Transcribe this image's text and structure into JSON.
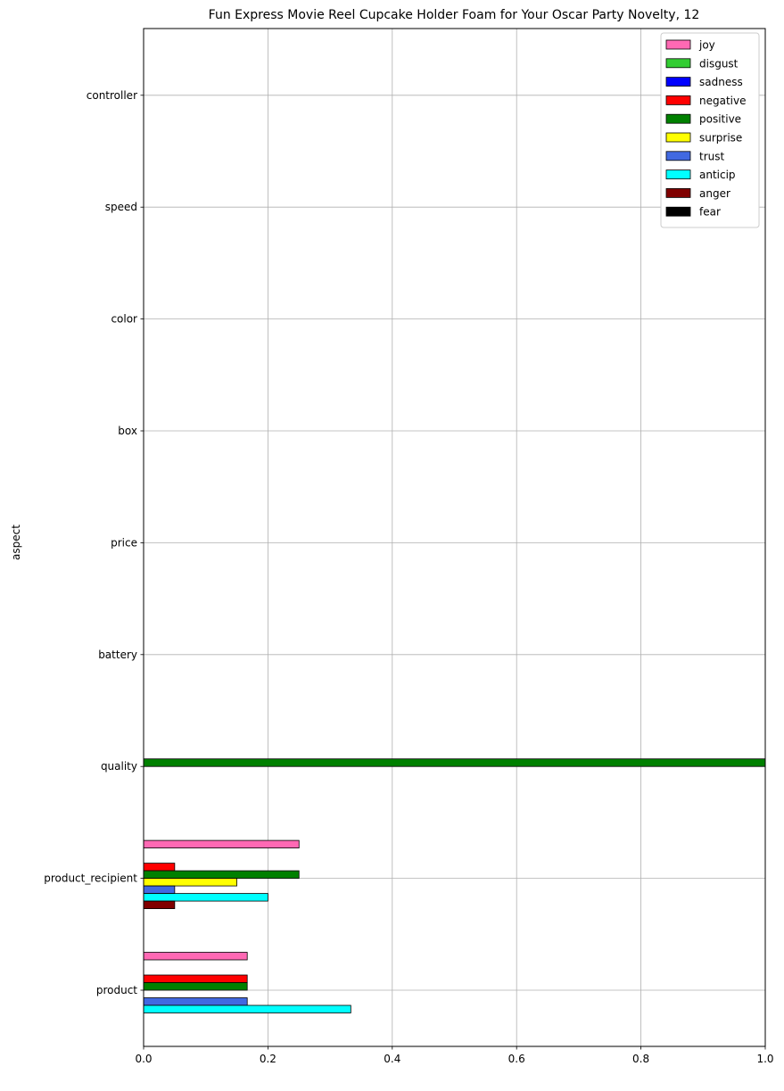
{
  "chart_data": {
    "type": "bar",
    "orientation": "horizontal",
    "title": "Fun Express Movie Reel Cupcake Holder Foam for Your Oscar Party Novelty, 12",
    "xlabel": "",
    "ylabel": "aspect",
    "xlim": [
      0,
      1.0
    ],
    "xticks": [
      "0.0",
      "0.2",
      "0.4",
      "0.6",
      "0.8",
      "1.0"
    ],
    "grid": true,
    "legend_position": "top-right",
    "categories": [
      "product",
      "product_recipient",
      "quality",
      "battery",
      "price",
      "box",
      "color",
      "speed",
      "controller"
    ],
    "series": [
      {
        "name": "joy",
        "color": "#ff69b4",
        "values": [
          0.1667,
          0.25,
          0,
          0,
          0,
          0,
          0,
          0,
          0
        ]
      },
      {
        "name": "disgust",
        "color": "#32cd32",
        "values": [
          0,
          0,
          0,
          0,
          0,
          0,
          0,
          0,
          0
        ]
      },
      {
        "name": "sadness",
        "color": "#0000ff",
        "values": [
          0,
          0,
          0,
          0,
          0,
          0,
          0,
          0,
          0
        ]
      },
      {
        "name": "negative",
        "color": "#ff0000",
        "values": [
          0.1667,
          0.05,
          0,
          0,
          0,
          0,
          0,
          0,
          0
        ]
      },
      {
        "name": "positive",
        "color": "#008000",
        "values": [
          0.1667,
          0.25,
          1.0,
          0,
          0,
          0,
          0,
          0,
          0
        ]
      },
      {
        "name": "surprise",
        "color": "#ffff00",
        "values": [
          0,
          0.15,
          0,
          0,
          0,
          0,
          0,
          0,
          0
        ]
      },
      {
        "name": "trust",
        "color": "#4169e1",
        "values": [
          0.1667,
          0.05,
          0,
          0,
          0,
          0,
          0,
          0,
          0
        ]
      },
      {
        "name": "anticip",
        "color": "#00ffff",
        "values": [
          0.3333,
          0.2,
          0,
          0,
          0,
          0,
          0,
          0,
          0
        ]
      },
      {
        "name": "anger",
        "color": "#800000",
        "values": [
          0,
          0.05,
          0,
          0,
          0,
          0,
          0,
          0,
          0
        ]
      },
      {
        "name": "fear",
        "color": "#000000",
        "values": [
          0,
          0,
          0,
          0,
          0,
          0,
          0,
          0,
          0
        ]
      }
    ]
  }
}
